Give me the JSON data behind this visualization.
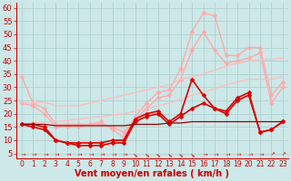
{
  "background_color": "#cce8e8",
  "grid_color": "#bbdddd",
  "xlabel": "Vent moyen/en rafales ( km/h )",
  "ylabel_ticks": [
    5,
    10,
    15,
    20,
    25,
    30,
    35,
    40,
    45,
    50,
    55,
    60
  ],
  "x_values": [
    0,
    1,
    2,
    3,
    4,
    5,
    6,
    7,
    8,
    9,
    10,
    11,
    12,
    13,
    14,
    15,
    16,
    17,
    18,
    19,
    20,
    21,
    22,
    23
  ],
  "series": [
    {
      "color": "#ffaaaa",
      "linewidth": 1.0,
      "marker": "D",
      "markersize": 2.5,
      "data": [
        34,
        24,
        22,
        16,
        16,
        16,
        16,
        17,
        14,
        11,
        19,
        24,
        28,
        29,
        37,
        51,
        58,
        57,
        42,
        42,
        45,
        45,
        27,
        32
      ]
    },
    {
      "color": "#ffaaaa",
      "linewidth": 1.0,
      "marker": "D",
      "markersize": 2.5,
      "data": [
        24,
        23,
        20,
        15,
        15,
        15,
        16,
        16,
        15,
        13,
        18,
        22,
        26,
        27,
        33,
        44,
        51,
        44,
        39,
        40,
        41,
        43,
        24,
        30
      ]
    },
    {
      "color": "#ffbbbb",
      "linewidth": 0.9,
      "marker": null,
      "markersize": 0,
      "data": [
        16,
        16.5,
        17,
        17,
        17.5,
        18,
        18.5,
        19,
        19.5,
        20,
        21,
        22,
        23,
        24,
        25.5,
        27,
        28,
        29.5,
        31,
        32,
        33,
        33,
        33,
        34
      ]
    },
    {
      "color": "#ffbbbb",
      "linewidth": 0.9,
      "marker": null,
      "markersize": 0,
      "data": [
        24,
        24,
        24.5,
        23,
        23,
        23,
        24,
        25,
        26,
        27,
        28,
        29,
        30,
        31,
        33,
        34,
        35,
        36.5,
        38,
        39,
        40,
        40.5,
        40.5,
        41
      ]
    },
    {
      "color": "#dd0000",
      "linewidth": 1.2,
      "marker": "D",
      "markersize": 2.5,
      "data": [
        16,
        16,
        15,
        10,
        9,
        9,
        9,
        9,
        10,
        10,
        18,
        20,
        21,
        17,
        20,
        33,
        27,
        22,
        21,
        26,
        28,
        13,
        14,
        17
      ]
    },
    {
      "color": "#dd0000",
      "linewidth": 1.2,
      "marker": "D",
      "markersize": 2.5,
      "data": [
        16,
        15,
        14,
        10,
        9,
        8,
        8,
        8,
        9,
        9,
        17,
        19,
        20,
        16,
        19,
        22,
        24,
        22,
        20,
        25,
        27,
        13,
        14,
        17
      ]
    },
    {
      "color": "#990000",
      "linewidth": 0.9,
      "marker": null,
      "markersize": 0,
      "data": [
        16,
        16,
        16,
        15.5,
        15.5,
        15.5,
        15.5,
        15.5,
        15.5,
        15.5,
        16,
        16,
        16,
        16.5,
        16.5,
        17,
        17,
        17,
        17,
        17,
        17,
        17,
        17,
        17
      ]
    }
  ],
  "wind_symbols": [
    "↗",
    "↗",
    "↗",
    "↗",
    "↗",
    "↗",
    "↗",
    "↗",
    "↗",
    "↗",
    "→",
    "→",
    "→",
    "→",
    "→",
    "→",
    "↗",
    "↗",
    "↗",
    "↗",
    "↗",
    "↗",
    "↑",
    "↑"
  ],
  "arrow_color": "#cc0000",
  "tick_label_color": "#cc0000",
  "axis_label_color": "#cc0000",
  "axis_label_fontsize": 7,
  "tick_fontsize": 6
}
